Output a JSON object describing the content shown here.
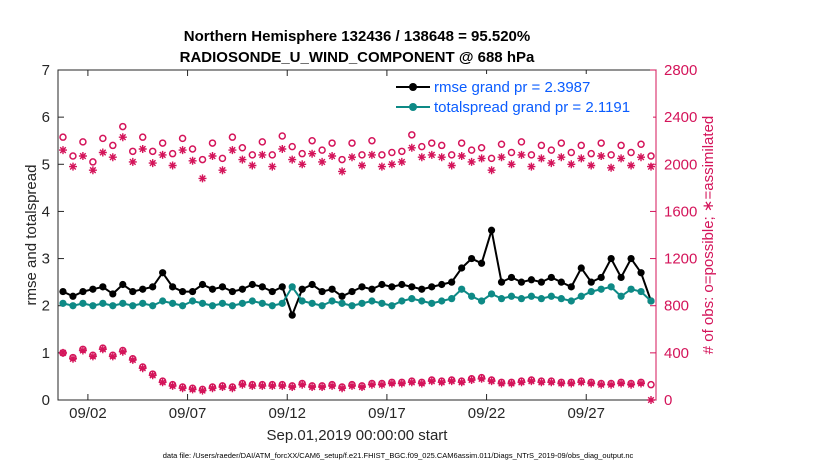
{
  "chart_data": {
    "type": "line",
    "title": "Northern Hemisphere 132436 / 138648 = 95.520%",
    "subtitle": "RADIOSONDE_U_WIND_COMPONENT @ 688 hPa",
    "xlabel": "Sep.01,2019 00:00:00 start",
    "ylabel_left": "rmse and totalspread",
    "ylabel_right": "# of obs: o=possible; ∗=assimilated",
    "footer": "data file: /Users/raeder/DAI/ATM_forcXX/CAM6_setup/f.e21.FHIST_BGC.f09_025.CAM6assim.011/Diags_NTrS_2019-09/obs_diag_output.nc",
    "xlim": [
      0.5,
      30.5
    ],
    "ylim_left": [
      0,
      7
    ],
    "ylim_right": [
      0,
      2800
    ],
    "x_ticks": [
      2,
      7,
      12,
      17,
      22,
      27
    ],
    "x_tick_labels": [
      "09/02",
      "09/07",
      "09/12",
      "09/17",
      "09/22",
      "09/27"
    ],
    "y_left_ticks": [
      "0",
      "1",
      "2",
      "3",
      "4",
      "5",
      "6",
      "7"
    ],
    "y_right_ticks": [
      "0",
      "400",
      "800",
      "1200",
      "1600",
      "2000",
      "2400",
      "2800"
    ],
    "legend": {
      "position": "top-right",
      "entries": [
        "rmse grand pr = 2.3987",
        "totalspread grand pr = 2.1191"
      ]
    },
    "x": [
      0.75,
      1.25,
      1.75,
      2.25,
      2.75,
      3.25,
      3.75,
      4.25,
      4.75,
      5.25,
      5.75,
      6.25,
      6.75,
      7.25,
      7.75,
      8.25,
      8.75,
      9.25,
      9.75,
      10.25,
      10.75,
      11.25,
      11.75,
      12.25,
      12.75,
      13.25,
      13.75,
      14.25,
      14.75,
      15.25,
      15.75,
      16.25,
      16.75,
      17.25,
      17.75,
      18.25,
      18.75,
      19.25,
      19.75,
      20.25,
      20.75,
      21.25,
      21.75,
      22.25,
      22.75,
      23.25,
      23.75,
      24.25,
      24.75,
      25.25,
      25.75,
      26.25,
      26.75,
      27.25,
      27.75,
      28.25,
      28.75,
      29.25,
      29.75,
      30.25
    ],
    "series": [
      {
        "name": "rmse",
        "color": "#000000",
        "axis": "left",
        "values": [
          2.3,
          2.2,
          2.3,
          2.35,
          2.4,
          2.25,
          2.45,
          2.3,
          2.35,
          2.4,
          2.7,
          2.4,
          2.3,
          2.3,
          2.45,
          2.35,
          2.4,
          2.3,
          2.35,
          2.45,
          2.4,
          2.3,
          2.4,
          1.8,
          2.35,
          2.45,
          2.3,
          2.35,
          2.2,
          2.3,
          2.4,
          2.35,
          2.45,
          2.4,
          2.45,
          2.4,
          2.35,
          2.4,
          2.45,
          2.5,
          2.8,
          3.0,
          2.9,
          3.6,
          2.5,
          2.6,
          2.5,
          2.55,
          2.5,
          2.6,
          2.5,
          2.4,
          2.8,
          2.5,
          2.6,
          3.0,
          2.6,
          3.0,
          2.7,
          2.1
        ]
      },
      {
        "name": "totalspread",
        "color": "#0e8a86",
        "axis": "left",
        "values": [
          2.05,
          2.0,
          2.05,
          2.0,
          2.05,
          2.0,
          2.05,
          2.0,
          2.05,
          2.0,
          2.1,
          2.05,
          2.0,
          2.1,
          2.05,
          2.0,
          2.05,
          2.0,
          2.05,
          2.1,
          2.05,
          2.0,
          2.05,
          2.4,
          2.1,
          2.05,
          2.0,
          2.1,
          2.05,
          2.0,
          2.05,
          2.1,
          2.05,
          2.0,
          2.1,
          2.15,
          2.1,
          2.05,
          2.1,
          2.15,
          2.35,
          2.2,
          2.1,
          2.25,
          2.15,
          2.2,
          2.15,
          2.2,
          2.15,
          2.2,
          2.15,
          2.1,
          2.2,
          2.3,
          2.35,
          2.4,
          2.2,
          2.35,
          2.3,
          2.1
        ]
      },
      {
        "name": "obs possible",
        "color": "#d4145a",
        "axis": "right",
        "marker": "circle",
        "values": [
          2230,
          2070,
          2190,
          2020,
          2220,
          2160,
          2320,
          2110,
          2230,
          2110,
          2180,
          2090,
          2220,
          2130,
          2040,
          2180,
          2050,
          2230,
          2140,
          2080,
          2190,
          2080,
          2240,
          2150,
          2090,
          2200,
          2120,
          2180,
          2040,
          2180,
          2080,
          2200,
          2080,
          2100,
          2110,
          2250,
          2150,
          2180,
          2160,
          2080,
          2180,
          2120,
          2140,
          2050,
          2170,
          2100,
          2190,
          2080,
          2160,
          2120,
          2180,
          2100,
          2160,
          2090,
          2180,
          2080,
          2160,
          2100,
          2170,
          2070
        ]
      },
      {
        "name": "obs assimilated",
        "color": "#d4145a",
        "axis": "right",
        "marker": "star",
        "values": [
          2120,
          1980,
          2070,
          1950,
          2100,
          2060,
          2230,
          2020,
          2130,
          2010,
          2080,
          1990,
          2120,
          2030,
          1880,
          2070,
          1950,
          2120,
          2040,
          1990,
          2080,
          1980,
          2130,
          2040,
          2000,
          2090,
          2020,
          2070,
          1940,
          2060,
          1990,
          2080,
          1980,
          2000,
          2020,
          2140,
          2060,
          2080,
          2060,
          1990,
          2070,
          2020,
          2050,
          1950,
          2060,
          2000,
          2080,
          1980,
          2050,
          2010,
          2060,
          2000,
          2050,
          1990,
          2070,
          1970,
          2050,
          1990,
          2060,
          1980
        ]
      },
      {
        "name": "obs lower possible",
        "color": "#d4145a",
        "axis": "right",
        "marker": "circle",
        "values": [
          400,
          360,
          430,
          380,
          440,
          380,
          420,
          350,
          280,
          220,
          160,
          130,
          110,
          100,
          90,
          110,
          120,
          110,
          140,
          130,
          130,
          130,
          130,
          120,
          140,
          120,
          120,
          130,
          110,
          130,
          120,
          140,
          140,
          150,
          150,
          160,
          150,
          170,
          160,
          170,
          160,
          180,
          190,
          170,
          150,
          150,
          160,
          170,
          160,
          160,
          150,
          150,
          160,
          150,
          140,
          140,
          150,
          140,
          150,
          130
        ]
      },
      {
        "name": "obs lower assimilated",
        "color": "#d4145a",
        "axis": "right",
        "marker": "star",
        "values": [
          400,
          350,
          420,
          370,
          430,
          370,
          410,
          340,
          270,
          210,
          150,
          120,
          100,
          90,
          80,
          100,
          110,
          100,
          130,
          120,
          120,
          120,
          120,
          110,
          130,
          110,
          110,
          120,
          100,
          120,
          110,
          130,
          130,
          140,
          140,
          150,
          140,
          160,
          150,
          160,
          150,
          170,
          180,
          160,
          140,
          140,
          150,
          160,
          150,
          150,
          140,
          140,
          150,
          140,
          130,
          130,
          140,
          130,
          140,
          0
        ]
      }
    ]
  }
}
